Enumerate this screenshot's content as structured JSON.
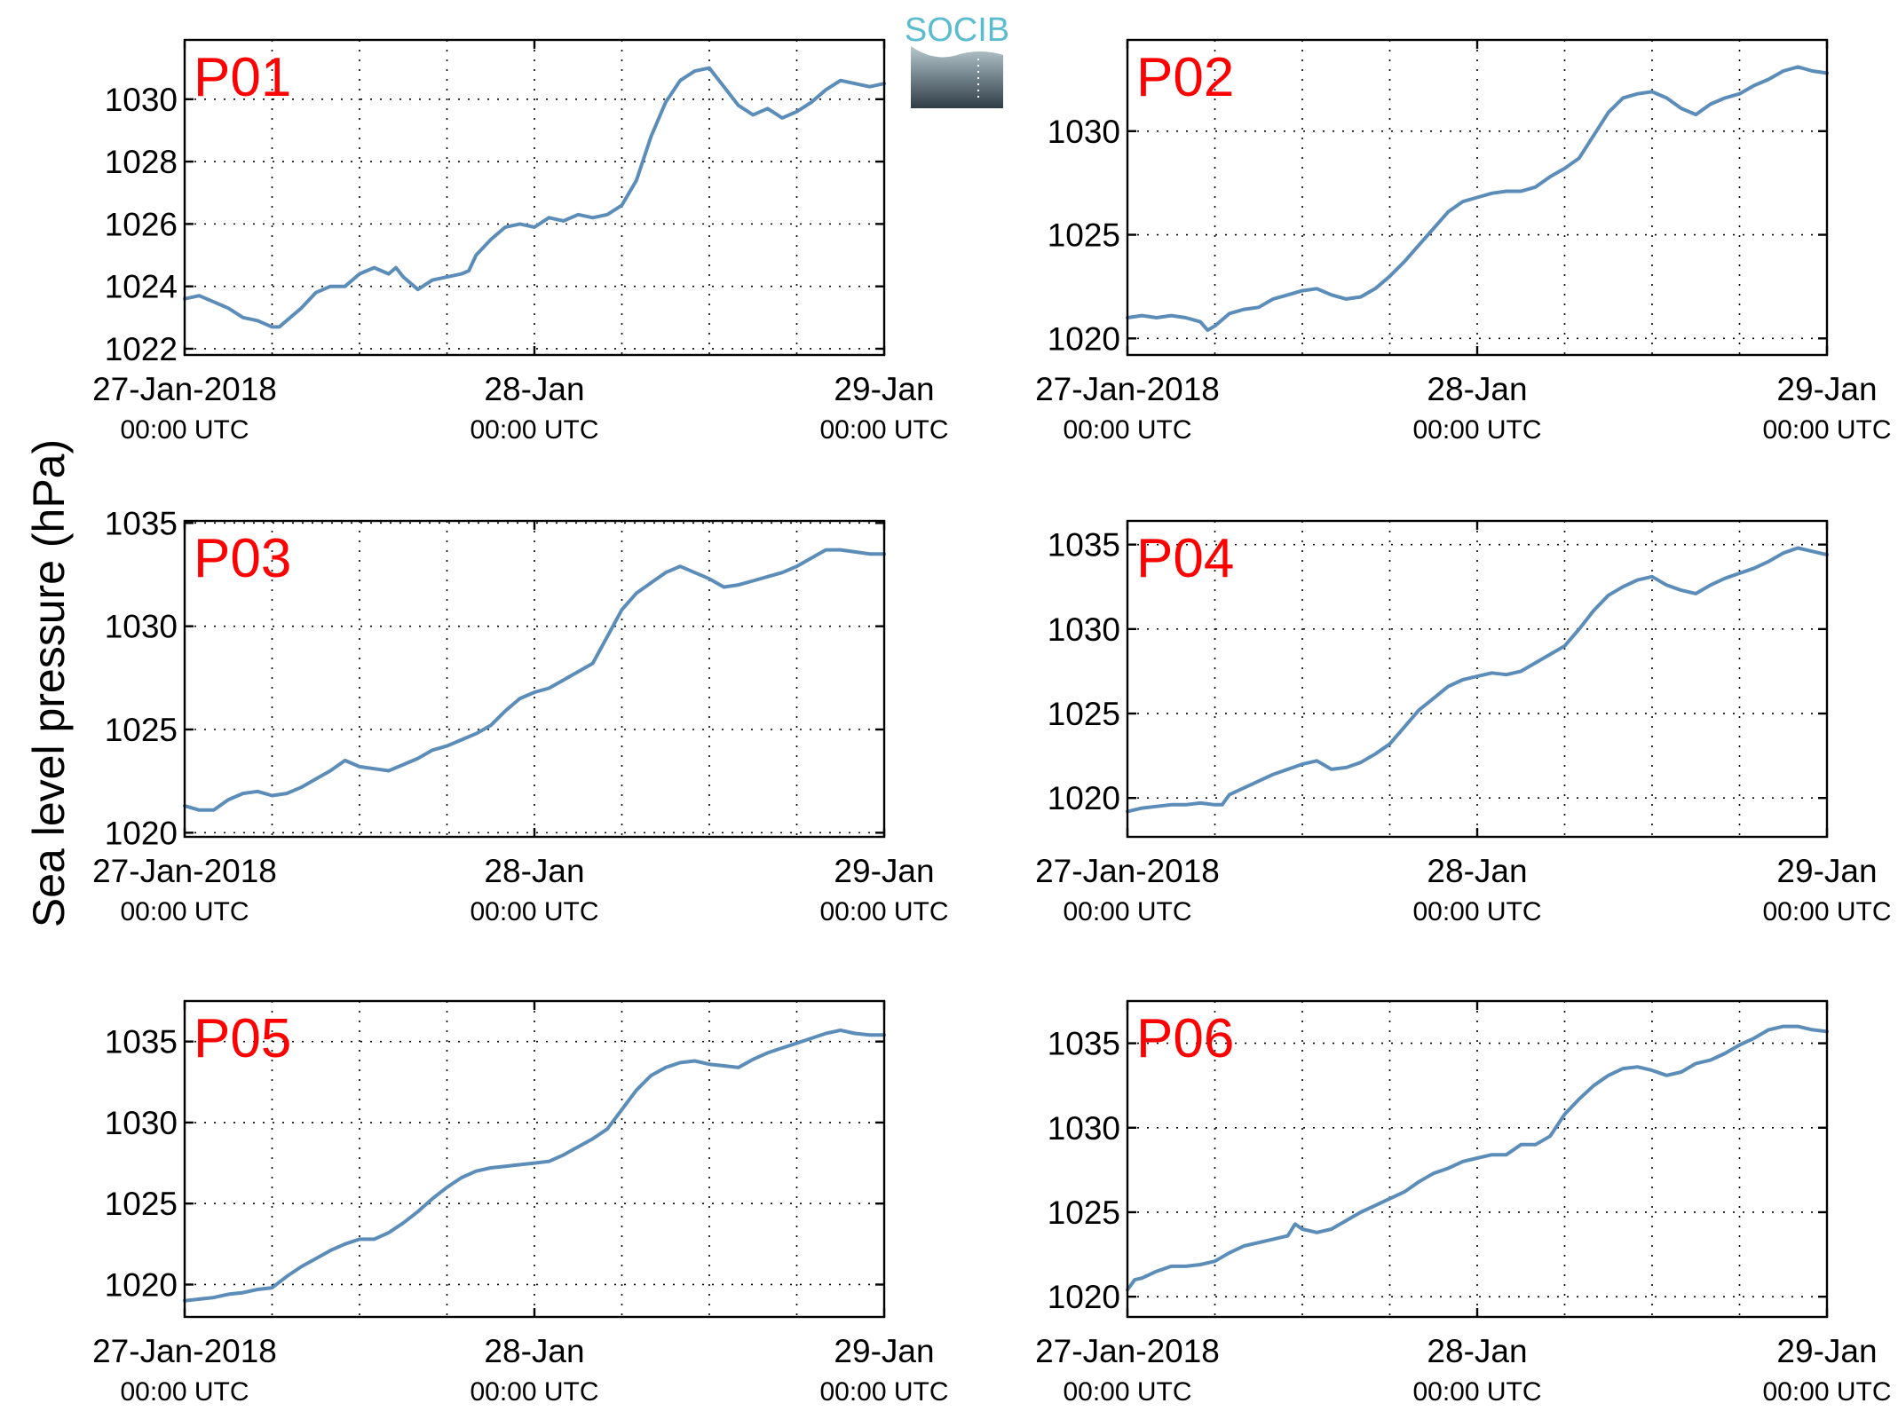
{
  "logo": {
    "text": "SOCIB",
    "colors": {
      "text": "#5bbcd0",
      "gradient_top": "#b6c8cf",
      "gradient_bottom": "#2e3c45"
    }
  },
  "colors": {
    "series": "#5b8db8",
    "panel_label": "#ff0000"
  },
  "chart_data": {
    "type": "line",
    "ylabel": "Sea level pressure (hPa)",
    "x_ticks": [
      {
        "x": 0,
        "top": "27-Jan-2018",
        "bottom": "00:00 UTC"
      },
      {
        "x": 24,
        "top": "28-Jan",
        "bottom": "00:00 UTC"
      },
      {
        "x": 48,
        "top": "29-Jan",
        "bottom": "00:00 UTC"
      }
    ],
    "x_unit": "hours since 27-Jan-2018 00:00 UTC",
    "xlim": [
      0,
      48
    ],
    "x_minor_grid_step": 6,
    "grid": true,
    "panels": [
      {
        "label": "P01",
        "ylim": [
          1021.8,
          1031.9
        ],
        "yticks": [
          1022,
          1024,
          1026,
          1028,
          1030
        ],
        "x": [
          0,
          1,
          2,
          3,
          4,
          5,
          6,
          6.5,
          7,
          8,
          9,
          10,
          11,
          12,
          13,
          14,
          14.5,
          15,
          16,
          17,
          18,
          19,
          19.5,
          20,
          21,
          22,
          23,
          24,
          25,
          26,
          27,
          28,
          29,
          30,
          31,
          32,
          33,
          34,
          35,
          36,
          37,
          38,
          39,
          40,
          41,
          42,
          43,
          44,
          45,
          46,
          47,
          48
        ],
        "y": [
          1023.6,
          1023.7,
          1023.5,
          1023.3,
          1023.0,
          1022.9,
          1022.7,
          1022.7,
          1022.9,
          1023.3,
          1023.8,
          1024.0,
          1024.0,
          1024.4,
          1024.6,
          1024.4,
          1024.6,
          1024.3,
          1023.9,
          1024.2,
          1024.3,
          1024.4,
          1024.5,
          1025.0,
          1025.5,
          1025.9,
          1026.0,
          1025.9,
          1026.2,
          1026.1,
          1026.3,
          1026.2,
          1026.3,
          1026.6,
          1027.4,
          1028.8,
          1029.9,
          1030.6,
          1030.9,
          1031.0,
          1030.4,
          1029.8,
          1029.5,
          1029.7,
          1029.4,
          1029.6,
          1029.9,
          1030.3,
          1030.6,
          1030.5,
          1030.4,
          1030.5
        ]
      },
      {
        "label": "P02",
        "ylim": [
          1019.2,
          1034.4
        ],
        "yticks": [
          1020,
          1025,
          1030
        ],
        "x": [
          0,
          1,
          2,
          3,
          4,
          5,
          5.5,
          6,
          7,
          8,
          9,
          10,
          11,
          12,
          13,
          14,
          15,
          16,
          17,
          18,
          19,
          20,
          21,
          22,
          23,
          24,
          25,
          26,
          27,
          28,
          29,
          30,
          31,
          32,
          33,
          34,
          35,
          36,
          37,
          38,
          39,
          40,
          41,
          42,
          43,
          44,
          45,
          46,
          47,
          48
        ],
        "y": [
          1021.0,
          1021.1,
          1021.0,
          1021.1,
          1021.0,
          1020.8,
          1020.4,
          1020.6,
          1021.2,
          1021.4,
          1021.5,
          1021.9,
          1022.1,
          1022.3,
          1022.4,
          1022.1,
          1021.9,
          1022.0,
          1022.4,
          1023.0,
          1023.7,
          1024.5,
          1025.3,
          1026.1,
          1026.6,
          1026.8,
          1027.0,
          1027.1,
          1027.1,
          1027.3,
          1027.8,
          1028.2,
          1028.7,
          1029.8,
          1030.9,
          1031.6,
          1031.8,
          1031.9,
          1031.6,
          1031.1,
          1030.8,
          1031.3,
          1031.6,
          1031.8,
          1032.2,
          1032.5,
          1032.9,
          1033.1,
          1032.9,
          1032.8
        ]
      },
      {
        "label": "P03",
        "ylim": [
          1019.8,
          1035.1
        ],
        "yticks": [
          1020,
          1025,
          1030,
          1035
        ],
        "x": [
          0,
          1,
          2,
          3,
          4,
          5,
          6,
          7,
          8,
          9,
          10,
          11,
          12,
          13,
          14,
          15,
          16,
          17,
          18,
          19,
          20,
          21,
          22,
          23,
          24,
          25,
          26,
          27,
          28,
          29,
          30,
          31,
          32,
          33,
          34,
          35,
          36,
          37,
          38,
          39,
          40,
          41,
          42,
          43,
          44,
          45,
          46,
          47,
          48
        ],
        "y": [
          1021.3,
          1021.1,
          1021.1,
          1021.6,
          1021.9,
          1022.0,
          1021.8,
          1021.9,
          1022.2,
          1022.6,
          1023.0,
          1023.5,
          1023.2,
          1023.1,
          1023.0,
          1023.3,
          1023.6,
          1024.0,
          1024.2,
          1024.5,
          1024.8,
          1025.2,
          1025.9,
          1026.5,
          1026.8,
          1027.0,
          1027.4,
          1027.8,
          1028.2,
          1029.5,
          1030.8,
          1031.6,
          1032.1,
          1032.6,
          1032.9,
          1032.6,
          1032.3,
          1031.9,
          1032.0,
          1032.2,
          1032.4,
          1032.6,
          1032.9,
          1033.3,
          1033.7,
          1033.7,
          1033.6,
          1033.5,
          1033.5
        ]
      },
      {
        "label": "P04",
        "ylim": [
          1017.7,
          1036.4
        ],
        "yticks": [
          1020,
          1025,
          1030,
          1035
        ],
        "x": [
          0,
          1,
          2,
          3,
          4,
          5,
          6,
          6.5,
          7,
          8,
          9,
          10,
          11,
          12,
          13,
          14,
          15,
          16,
          17,
          18,
          19,
          20,
          21,
          22,
          23,
          24,
          25,
          26,
          27,
          28,
          29,
          30,
          31,
          32,
          33,
          34,
          35,
          36,
          37,
          38,
          39,
          40,
          41,
          42,
          43,
          44,
          45,
          46,
          47,
          48
        ],
        "y": [
          1019.2,
          1019.4,
          1019.5,
          1019.6,
          1019.6,
          1019.7,
          1019.6,
          1019.6,
          1020.2,
          1020.6,
          1021.0,
          1021.4,
          1021.7,
          1022.0,
          1022.2,
          1021.7,
          1021.8,
          1022.1,
          1022.6,
          1023.2,
          1024.2,
          1025.2,
          1025.9,
          1026.6,
          1027.0,
          1027.2,
          1027.4,
          1027.3,
          1027.5,
          1028.0,
          1028.5,
          1029.0,
          1030.0,
          1031.1,
          1032.0,
          1032.5,
          1032.9,
          1033.1,
          1032.6,
          1032.3,
          1032.1,
          1032.6,
          1033.0,
          1033.3,
          1033.6,
          1034.0,
          1034.5,
          1034.8,
          1034.6,
          1034.4
        ]
      },
      {
        "label": "P05",
        "ylim": [
          1018.0,
          1037.5
        ],
        "yticks": [
          1020,
          1025,
          1030,
          1035
        ],
        "x": [
          0,
          1,
          2,
          3,
          4,
          5,
          6,
          7,
          8,
          9,
          10,
          11,
          12,
          13,
          14,
          15,
          16,
          17,
          18,
          19,
          20,
          21,
          22,
          23,
          24,
          25,
          26,
          27,
          28,
          29,
          30,
          31,
          32,
          33,
          34,
          35,
          36,
          37,
          38,
          39,
          40,
          41,
          42,
          43,
          44,
          45,
          46,
          47,
          48
        ],
        "y": [
          1019.0,
          1019.1,
          1019.2,
          1019.4,
          1019.5,
          1019.7,
          1019.8,
          1020.5,
          1021.1,
          1021.6,
          1022.1,
          1022.5,
          1022.8,
          1022.8,
          1023.2,
          1023.8,
          1024.5,
          1025.3,
          1026.0,
          1026.6,
          1027.0,
          1027.2,
          1027.3,
          1027.4,
          1027.5,
          1027.6,
          1028.0,
          1028.5,
          1029.0,
          1029.6,
          1030.8,
          1032.0,
          1032.9,
          1033.4,
          1033.7,
          1033.8,
          1033.6,
          1033.5,
          1033.4,
          1033.9,
          1034.3,
          1034.6,
          1034.9,
          1035.2,
          1035.5,
          1035.7,
          1035.5,
          1035.4,
          1035.4
        ]
      },
      {
        "label": "P06",
        "ylim": [
          1018.8,
          1037.5
        ],
        "yticks": [
          1020,
          1025,
          1030,
          1035
        ],
        "x": [
          0,
          0.5,
          1,
          2,
          3,
          4,
          5,
          6,
          7,
          8,
          9,
          10,
          11,
          11.5,
          12,
          13,
          14,
          15,
          16,
          17,
          18,
          19,
          20,
          21,
          22,
          23,
          24,
          25,
          26,
          27,
          28,
          29,
          30,
          31,
          32,
          33,
          34,
          35,
          36,
          37,
          38,
          39,
          40,
          41,
          42,
          43,
          44,
          45,
          46,
          47,
          48
        ],
        "y": [
          1020.4,
          1021.0,
          1021.1,
          1021.5,
          1021.8,
          1021.8,
          1021.9,
          1022.1,
          1022.6,
          1023.0,
          1023.2,
          1023.4,
          1023.6,
          1024.3,
          1024.0,
          1023.8,
          1024.0,
          1024.5,
          1025.0,
          1025.4,
          1025.8,
          1026.2,
          1026.8,
          1027.3,
          1027.6,
          1028.0,
          1028.2,
          1028.4,
          1028.4,
          1029.0,
          1029.0,
          1029.5,
          1030.8,
          1031.7,
          1032.5,
          1033.1,
          1033.5,
          1033.6,
          1033.4,
          1033.1,
          1033.3,
          1033.8,
          1034.0,
          1034.4,
          1034.9,
          1035.3,
          1035.8,
          1036.0,
          1036.0,
          1035.8,
          1035.7
        ]
      }
    ]
  }
}
